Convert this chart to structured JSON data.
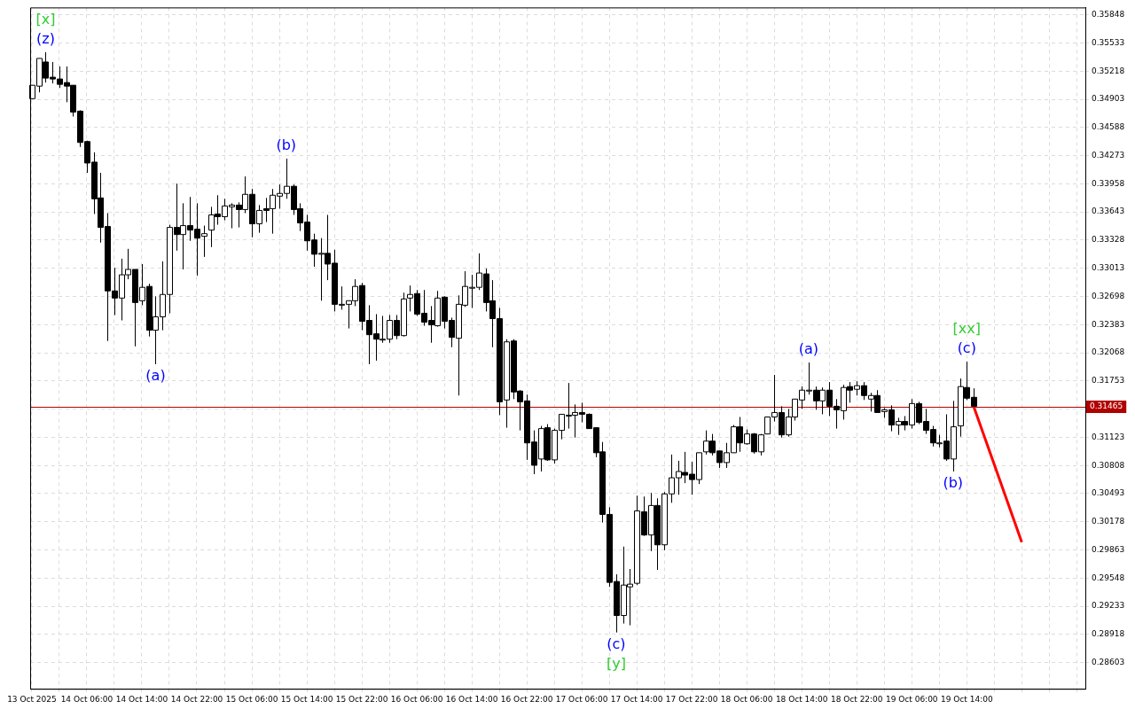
{
  "chart_data": {
    "type": "candlestick",
    "x": [
      "2025-10-13T22:00",
      "2025-10-13T23:00",
      "2025-10-14T00:00",
      "2025-10-14T01:00",
      "2025-10-14T02:00",
      "2025-10-14T03:00",
      "2025-10-14T04:00",
      "2025-10-14T05:00",
      "2025-10-14T06:00",
      "2025-10-14T07:00",
      "2025-10-14T08:00",
      "2025-10-14T09:00",
      "2025-10-14T10:00",
      "2025-10-14T11:00",
      "2025-10-14T12:00",
      "2025-10-14T13:00",
      "2025-10-14T14:00",
      "2025-10-14T15:00",
      "2025-10-14T16:00",
      "2025-10-14T17:00",
      "2025-10-14T18:00",
      "2025-10-14T19:00",
      "2025-10-14T20:00",
      "2025-10-14T21:00",
      "2025-10-14T22:00",
      "2025-10-14T23:00",
      "2025-10-15T00:00",
      "2025-10-15T01:00",
      "2025-10-15T02:00",
      "2025-10-15T03:00",
      "2025-10-15T04:00",
      "2025-10-15T05:00",
      "2025-10-15T06:00",
      "2025-10-15T07:00",
      "2025-10-15T08:00",
      "2025-10-15T09:00",
      "2025-10-15T10:00",
      "2025-10-15T11:00",
      "2025-10-15T12:00",
      "2025-10-15T13:00",
      "2025-10-15T14:00",
      "2025-10-15T15:00",
      "2025-10-15T16:00",
      "2025-10-15T17:00",
      "2025-10-15T18:00",
      "2025-10-15T19:00",
      "2025-10-15T20:00",
      "2025-10-15T21:00",
      "2025-10-15T22:00",
      "2025-10-15T23:00",
      "2025-10-16T00:00",
      "2025-10-16T01:00",
      "2025-10-16T02:00",
      "2025-10-16T03:00",
      "2025-10-16T04:00",
      "2025-10-16T05:00",
      "2025-10-16T06:00",
      "2025-10-16T07:00",
      "2025-10-16T08:00",
      "2025-10-16T09:00",
      "2025-10-16T10:00",
      "2025-10-16T11:00",
      "2025-10-16T12:00",
      "2025-10-16T13:00",
      "2025-10-16T14:00",
      "2025-10-16T15:00",
      "2025-10-16T16:00",
      "2025-10-16T17:00",
      "2025-10-16T18:00",
      "2025-10-16T19:00",
      "2025-10-16T20:00",
      "2025-10-16T21:00",
      "2025-10-16T22:00",
      "2025-10-16T23:00",
      "2025-10-17T00:00",
      "2025-10-17T01:00",
      "2025-10-17T02:00",
      "2025-10-17T03:00",
      "2025-10-17T04:00",
      "2025-10-17T05:00",
      "2025-10-17T06:00",
      "2025-10-17T07:00",
      "2025-10-17T08:00",
      "2025-10-17T09:00",
      "2025-10-17T10:00",
      "2025-10-17T11:00",
      "2025-10-17T12:00",
      "2025-10-17T13:00",
      "2025-10-17T14:00",
      "2025-10-17T15:00",
      "2025-10-17T16:00",
      "2025-10-17T17:00",
      "2025-10-17T18:00",
      "2025-10-17T19:00",
      "2025-10-17T20:00",
      "2025-10-17T21:00",
      "2025-10-17T22:00",
      "2025-10-17T23:00",
      "2025-10-18T00:00",
      "2025-10-18T01:00",
      "2025-10-18T02:00",
      "2025-10-18T03:00",
      "2025-10-18T04:00",
      "2025-10-18T05:00",
      "2025-10-18T06:00",
      "2025-10-18T07:00",
      "2025-10-18T08:00",
      "2025-10-18T09:00",
      "2025-10-18T10:00",
      "2025-10-18T11:00",
      "2025-10-18T12:00",
      "2025-10-18T13:00",
      "2025-10-18T14:00",
      "2025-10-18T15:00",
      "2025-10-18T16:00",
      "2025-10-18T17:00",
      "2025-10-18T18:00",
      "2025-10-18T19:00",
      "2025-10-18T20:00",
      "2025-10-18T21:00",
      "2025-10-18T22:00",
      "2025-10-18T23:00",
      "2025-10-19T00:00",
      "2025-10-19T01:00",
      "2025-10-19T02:00",
      "2025-10-19T03:00",
      "2025-10-19T04:00",
      "2025-10-19T05:00",
      "2025-10-19T06:00",
      "2025-10-19T07:00",
      "2025-10-19T08:00",
      "2025-10-19T09:00",
      "2025-10-19T10:00",
      "2025-10-19T11:00",
      "2025-10-19T12:00",
      "2025-10-19T13:00",
      "2025-10-19T14:00",
      "2025-10-19T15:00"
    ],
    "ohlc": [
      [
        0.3491,
        0.3506,
        0.3491,
        0.3506
      ],
      [
        0.3505,
        0.3536,
        0.3498,
        0.3536
      ],
      [
        0.3532,
        0.3543,
        0.3509,
        0.3514
      ],
      [
        0.3515,
        0.3532,
        0.3508,
        0.3513
      ],
      [
        0.3513,
        0.3527,
        0.3503,
        0.3507
      ],
      [
        0.3509,
        0.3527,
        0.3487,
        0.3505
      ],
      [
        0.3506,
        0.3506,
        0.3471,
        0.3476
      ],
      [
        0.3477,
        0.3478,
        0.3437,
        0.3442
      ],
      [
        0.3443,
        0.3444,
        0.3408,
        0.3419
      ],
      [
        0.342,
        0.3431,
        0.3362,
        0.3379
      ],
      [
        0.338,
        0.3408,
        0.333,
        0.3347
      ],
      [
        0.3348,
        0.3363,
        0.322,
        0.3276
      ],
      [
        0.3276,
        0.3302,
        0.3249,
        0.3268
      ],
      [
        0.3268,
        0.3312,
        0.3243,
        0.3294
      ],
      [
        0.3294,
        0.3323,
        0.3289,
        0.33
      ],
      [
        0.33,
        0.33,
        0.3214,
        0.3263
      ],
      [
        0.3265,
        0.3306,
        0.326,
        0.328
      ],
      [
        0.3281,
        0.3284,
        0.3225,
        0.3232
      ],
      [
        0.3232,
        0.327,
        0.3194,
        0.3247
      ],
      [
        0.3247,
        0.3309,
        0.3232,
        0.3272
      ],
      [
        0.3272,
        0.335,
        0.3251,
        0.3347
      ],
      [
        0.3347,
        0.3396,
        0.3321,
        0.3339
      ],
      [
        0.3339,
        0.3374,
        0.33,
        0.3349
      ],
      [
        0.3349,
        0.3381,
        0.3332,
        0.3344
      ],
      [
        0.3345,
        0.3374,
        0.3293,
        0.3335
      ],
      [
        0.3337,
        0.3349,
        0.3314,
        0.334
      ],
      [
        0.3344,
        0.337,
        0.3325,
        0.3361
      ],
      [
        0.3362,
        0.3383,
        0.335,
        0.3359
      ],
      [
        0.3359,
        0.3379,
        0.3355,
        0.3371
      ],
      [
        0.337,
        0.3374,
        0.3346,
        0.3372
      ],
      [
        0.3372,
        0.3375,
        0.3347,
        0.3367
      ],
      [
        0.3367,
        0.3404,
        0.3363,
        0.3384
      ],
      [
        0.3384,
        0.339,
        0.3336,
        0.3351
      ],
      [
        0.3351,
        0.3372,
        0.3341,
        0.3366
      ],
      [
        0.3368,
        0.338,
        0.3353,
        0.3366
      ],
      [
        0.3368,
        0.339,
        0.334,
        0.3383
      ],
      [
        0.3382,
        0.3395,
        0.3368,
        0.3385
      ],
      [
        0.3385,
        0.3424,
        0.3379,
        0.3393
      ],
      [
        0.3393,
        0.3395,
        0.3361,
        0.3367
      ],
      [
        0.3368,
        0.3374,
        0.3343,
        0.3352
      ],
      [
        0.3353,
        0.3361,
        0.3321,
        0.3332
      ],
      [
        0.3333,
        0.334,
        0.3303,
        0.3317
      ],
      [
        0.3318,
        0.3335,
        0.3265,
        0.3318
      ],
      [
        0.3318,
        0.3361,
        0.3288,
        0.3306
      ],
      [
        0.3307,
        0.3322,
        0.3253,
        0.3261
      ],
      [
        0.3261,
        0.3281,
        0.3255,
        0.3261
      ],
      [
        0.3261,
        0.3265,
        0.3234,
        0.3265
      ],
      [
        0.3265,
        0.3289,
        0.3259,
        0.3281
      ],
      [
        0.3282,
        0.3285,
        0.3232,
        0.3242
      ],
      [
        0.3243,
        0.326,
        0.3194,
        0.3227
      ],
      [
        0.3228,
        0.325,
        0.3198,
        0.3222
      ],
      [
        0.3222,
        0.3248,
        0.3218,
        0.3222
      ],
      [
        0.3222,
        0.3249,
        0.3218,
        0.3243
      ],
      [
        0.3243,
        0.3249,
        0.3222,
        0.3226
      ],
      [
        0.3226,
        0.3274,
        0.3225,
        0.3267
      ],
      [
        0.3268,
        0.3282,
        0.3253,
        0.3272
      ],
      [
        0.3273,
        0.3277,
        0.3248,
        0.325
      ],
      [
        0.3251,
        0.3277,
        0.3237,
        0.3241
      ],
      [
        0.3243,
        0.3259,
        0.3218,
        0.3238
      ],
      [
        0.3237,
        0.3276,
        0.3236,
        0.3268
      ],
      [
        0.3269,
        0.327,
        0.3234,
        0.3242
      ],
      [
        0.3243,
        0.3246,
        0.3213,
        0.3224
      ],
      [
        0.3223,
        0.3271,
        0.3159,
        0.3261
      ],
      [
        0.326,
        0.3298,
        0.3258,
        0.3281
      ],
      [
        0.328,
        0.3294,
        0.3257,
        0.328
      ],
      [
        0.328,
        0.3318,
        0.3277,
        0.3296
      ],
      [
        0.3295,
        0.3301,
        0.3253,
        0.3263
      ],
      [
        0.3265,
        0.3288,
        0.3213,
        0.3245
      ],
      [
        0.3245,
        0.3257,
        0.3137,
        0.3152
      ],
      [
        0.3154,
        0.3222,
        0.3123,
        0.3219
      ],
      [
        0.322,
        0.3222,
        0.3155,
        0.3163
      ],
      [
        0.3164,
        0.3165,
        0.312,
        0.3152
      ],
      [
        0.3153,
        0.316,
        0.3087,
        0.3106
      ],
      [
        0.3107,
        0.312,
        0.3071,
        0.3081
      ],
      [
        0.3088,
        0.3125,
        0.3074,
        0.3122
      ],
      [
        0.3123,
        0.3127,
        0.3086,
        0.3087
      ],
      [
        0.3087,
        0.3122,
        0.3083,
        0.312
      ],
      [
        0.312,
        0.3138,
        0.311,
        0.3138
      ],
      [
        0.3137,
        0.3173,
        0.3122,
        0.3137
      ],
      [
        0.3137,
        0.3149,
        0.3112,
        0.314
      ],
      [
        0.314,
        0.3151,
        0.3129,
        0.3138
      ],
      [
        0.3138,
        0.3139,
        0.3122,
        0.3122
      ],
      [
        0.3123,
        0.3123,
        0.309,
        0.3095
      ],
      [
        0.3096,
        0.3107,
        0.3017,
        0.3026
      ],
      [
        0.3026,
        0.3034,
        0.2945,
        0.295
      ],
      [
        0.2951,
        0.2959,
        0.2894,
        0.2913
      ],
      [
        0.2913,
        0.299,
        0.2904,
        0.2947
      ],
      [
        0.2945,
        0.2965,
        0.2902,
        0.2948
      ],
      [
        0.2949,
        0.3047,
        0.2947,
        0.303
      ],
      [
        0.3029,
        0.3046,
        0.3002,
        0.3003
      ],
      [
        0.3003,
        0.305,
        0.2985,
        0.3036
      ],
      [
        0.3036,
        0.3044,
        0.2964,
        0.2992
      ],
      [
        0.2992,
        0.3051,
        0.2986,
        0.3049
      ],
      [
        0.3049,
        0.3093,
        0.3039,
        0.3067
      ],
      [
        0.3067,
        0.3086,
        0.3048,
        0.3074
      ],
      [
        0.3073,
        0.3096,
        0.3061,
        0.307
      ],
      [
        0.3071,
        0.3085,
        0.3048,
        0.3065
      ],
      [
        0.3065,
        0.3095,
        0.306,
        0.3095
      ],
      [
        0.3096,
        0.312,
        0.3093,
        0.3108
      ],
      [
        0.3108,
        0.3116,
        0.3092,
        0.3095
      ],
      [
        0.3097,
        0.3097,
        0.3078,
        0.3084
      ],
      [
        0.3084,
        0.3106,
        0.3078,
        0.3095
      ],
      [
        0.3095,
        0.3126,
        0.3095,
        0.3124
      ],
      [
        0.3124,
        0.3135,
        0.3096,
        0.3106
      ],
      [
        0.3105,
        0.3121,
        0.3104,
        0.3116
      ],
      [
        0.3116,
        0.3117,
        0.3094,
        0.3096
      ],
      [
        0.3096,
        0.3116,
        0.3092,
        0.3115
      ],
      [
        0.3116,
        0.3135,
        0.3116,
        0.3135
      ],
      [
        0.3135,
        0.3182,
        0.313,
        0.314
      ],
      [
        0.314,
        0.3147,
        0.3112,
        0.3115
      ],
      [
        0.3115,
        0.3144,
        0.3113,
        0.3135
      ],
      [
        0.3135,
        0.3155,
        0.3131,
        0.3155
      ],
      [
        0.3154,
        0.3169,
        0.3144,
        0.3165
      ],
      [
        0.3165,
        0.3196,
        0.316,
        0.3165
      ],
      [
        0.3165,
        0.3169,
        0.3143,
        0.3153
      ],
      [
        0.3153,
        0.3168,
        0.3138,
        0.3165
      ],
      [
        0.3165,
        0.3174,
        0.3136,
        0.3147
      ],
      [
        0.3147,
        0.3155,
        0.3122,
        0.3143
      ],
      [
        0.3142,
        0.3171,
        0.3132,
        0.3168
      ],
      [
        0.3169,
        0.3174,
        0.3151,
        0.3165
      ],
      [
        0.3166,
        0.3175,
        0.3159,
        0.317
      ],
      [
        0.317,
        0.3174,
        0.3154,
        0.3159
      ],
      [
        0.3155,
        0.3162,
        0.3141,
        0.3159
      ],
      [
        0.3159,
        0.3165,
        0.314,
        0.314
      ],
      [
        0.3141,
        0.3145,
        0.3134,
        0.3143
      ],
      [
        0.3143,
        0.3148,
        0.3119,
        0.3126
      ],
      [
        0.3126,
        0.3134,
        0.3115,
        0.313
      ],
      [
        0.313,
        0.3136,
        0.312,
        0.3126
      ],
      [
        0.3126,
        0.3155,
        0.3122,
        0.315
      ],
      [
        0.315,
        0.3152,
        0.3127,
        0.3129
      ],
      [
        0.313,
        0.3144,
        0.3116,
        0.312
      ],
      [
        0.3121,
        0.3125,
        0.3102,
        0.3106
      ],
      [
        0.3106,
        0.3115,
        0.3101,
        0.3106
      ],
      [
        0.3108,
        0.3138,
        0.3086,
        0.3088
      ],
      [
        0.3088,
        0.3153,
        0.3074,
        0.3124
      ],
      [
        0.3125,
        0.3178,
        0.3113,
        0.3169
      ],
      [
        0.3168,
        0.3197,
        0.3154,
        0.3156
      ],
      [
        0.3157,
        0.3167,
        0.3147,
        0.3147
      ]
    ],
    "series": [
      {
        "type": "line",
        "x": [
          "2025-10-19T15:00",
          "2025-10-19T22:00"
        ],
        "values": [
          0.3147,
          0.2995
        ],
        "color": "#ff0000"
      }
    ],
    "xlim": [
      "2025-10-13T21:45",
      "2025-10-20T07:15"
    ],
    "xticks": [
      {
        "value": "2025-10-13T22:00",
        "label": "13 Oct 2025"
      },
      {
        "value": "2025-10-14T02:00",
        "label": null
      },
      {
        "value": "2025-10-14T06:00",
        "label": "14 Oct 06:00"
      },
      {
        "value": "2025-10-14T10:00",
        "label": null
      },
      {
        "value": "2025-10-14T14:00",
        "label": "14 Oct 14:00"
      },
      {
        "value": "2025-10-14T18:00",
        "label": null
      },
      {
        "value": "2025-10-14T22:00",
        "label": "14 Oct 22:00"
      },
      {
        "value": "2025-10-15T02:00",
        "label": null
      },
      {
        "value": "2025-10-15T06:00",
        "label": "15 Oct 06:00"
      },
      {
        "value": "2025-10-15T10:00",
        "label": null
      },
      {
        "value": "2025-10-15T14:00",
        "label": "15 Oct 14:00"
      },
      {
        "value": "2025-10-15T18:00",
        "label": null
      },
      {
        "value": "2025-10-15T22:00",
        "label": "15 Oct 22:00"
      },
      {
        "value": "2025-10-16T02:00",
        "label": null
      },
      {
        "value": "2025-10-16T06:00",
        "label": "16 Oct 06:00"
      },
      {
        "value": "2025-10-16T10:00",
        "label": null
      },
      {
        "value": "2025-10-16T14:00",
        "label": "16 Oct 14:00"
      },
      {
        "value": "2025-10-16T18:00",
        "label": null
      },
      {
        "value": "2025-10-16T22:00",
        "label": "16 Oct 22:00"
      },
      {
        "value": "2025-10-17T02:00",
        "label": null
      },
      {
        "value": "2025-10-17T06:00",
        "label": "17 Oct 06:00"
      },
      {
        "value": "2025-10-17T10:00",
        "label": null
      },
      {
        "value": "2025-10-17T14:00",
        "label": "17 Oct 14:00"
      },
      {
        "value": "2025-10-17T18:00",
        "label": null
      },
      {
        "value": "2025-10-17T22:00",
        "label": "17 Oct 22:00"
      },
      {
        "value": "2025-10-18T02:00",
        "label": null
      },
      {
        "value": "2025-10-18T06:00",
        "label": "18 Oct 06:00"
      },
      {
        "value": "2025-10-18T10:00",
        "label": null
      },
      {
        "value": "2025-10-18T14:00",
        "label": "18 Oct 14:00"
      },
      {
        "value": "2025-10-18T18:00",
        "label": null
      },
      {
        "value": "2025-10-18T22:00",
        "label": "18 Oct 22:00"
      },
      {
        "value": "2025-10-19T02:00",
        "label": null
      },
      {
        "value": "2025-10-19T06:00",
        "label": "19 Oct 06:00"
      },
      {
        "value": "2025-10-19T10:00",
        "label": null
      },
      {
        "value": "2025-10-19T14:00",
        "label": "19 Oct 14:00"
      },
      {
        "value": "2025-10-19T18:00",
        "label": null
      },
      {
        "value": "2025-10-19T22:00",
        "label": null
      },
      {
        "value": "2025-10-20T02:00",
        "label": null
      },
      {
        "value": "2025-10-20T06:00",
        "label": null
      }
    ],
    "ylim": [
      0.2831,
      0.3593
    ],
    "yticks": [
      0.28603,
      0.28918,
      0.29233,
      0.29548,
      0.29863,
      0.30178,
      0.30493,
      0.30808,
      0.31123,
      {
        "value": 0.31438,
        "label": null
      },
      0.31753,
      0.32068,
      0.32383,
      0.32698,
      0.33013,
      0.33328,
      0.33643,
      0.33958,
      0.34273,
      0.34588,
      0.34903,
      0.35218,
      0.35533,
      0.35848
    ],
    "ref_lines": [
      {
        "axis": "y",
        "value": 0.31465,
        "label": "0.31465",
        "color": "#b00000"
      }
    ],
    "annotations": [
      {
        "text": "(z)",
        "x": "2025-10-14T00:00",
        "y": 0.3543
      },
      {
        "text": "[x]",
        "x": "2025-10-14T00:00",
        "y": 0.3543
      },
      {
        "text": "(a)",
        "x": "2025-10-14T16:00",
        "y": 0.3194
      },
      {
        "text": "(b)",
        "x": "2025-10-15T11:00",
        "y": 0.3424
      },
      {
        "text": "(c)",
        "x": "2025-10-17T11:00",
        "y": 0.2894
      },
      {
        "text": "[y]",
        "x": "2025-10-17T11:00",
        "y": 0.2894
      },
      {
        "text": "(a)",
        "x": "2025-10-18T15:00",
        "y": 0.3196
      },
      {
        "text": "(b)",
        "x": "2025-10-19T12:00",
        "y": 0.3074
      },
      {
        "text": "(c)",
        "x": "2025-10-19T14:00",
        "y": 0.3197
      },
      {
        "text": "[xx]",
        "x": "2025-10-19T14:00",
        "y": 0.3197
      }
    ],
    "grid": true
  }
}
